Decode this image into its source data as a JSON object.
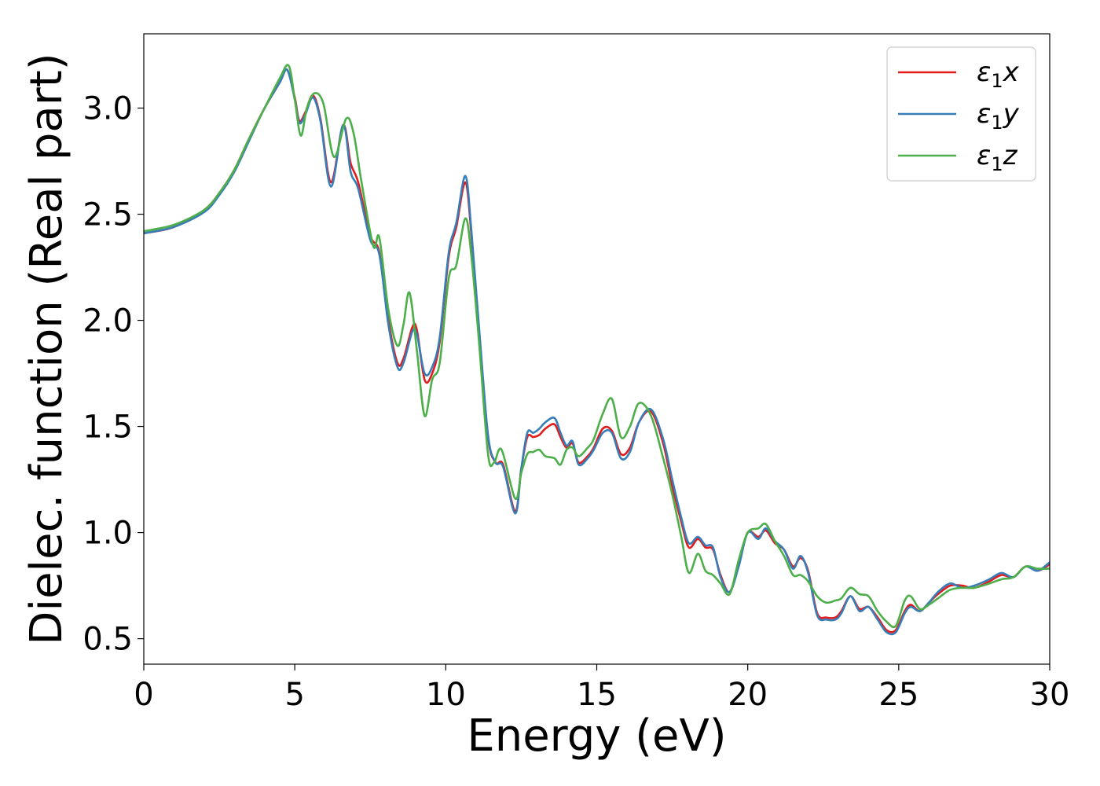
{
  "chart_data": {
    "type": "line",
    "title": "",
    "xlabel": "Energy (eV)",
    "ylabel": "Dielec. function (Real part)",
    "xlim": [
      0,
      30
    ],
    "ylim": [
      0.38,
      3.35
    ],
    "xticks": [
      0,
      5,
      10,
      15,
      20,
      25,
      30
    ],
    "yticks": [
      0.5,
      1.0,
      1.5,
      2.0,
      2.5,
      3.0
    ],
    "xtick_labels": [
      "0",
      "5",
      "10",
      "15",
      "20",
      "25",
      "30"
    ],
    "ytick_labels": [
      "0.5",
      "1.0",
      "1.5",
      "2.0",
      "2.5",
      "3.0"
    ],
    "grid": false,
    "legend_position": "top-right",
    "series": [
      {
        "name": "ε₁x",
        "legend_base": "ε",
        "legend_sub": "1",
        "legend_suffix": "x",
        "color": "#e41a1c",
        "x": [
          0,
          1,
          2,
          2.5,
          3,
          3.5,
          4,
          4.5,
          4.75,
          5.0,
          5.15,
          5.35,
          5.6,
          5.85,
          6.2,
          6.6,
          6.85,
          7.1,
          7.5,
          7.8,
          8.1,
          8.4,
          8.6,
          8.9,
          9.05,
          9.3,
          9.55,
          9.8,
          10.1,
          10.35,
          10.65,
          10.85,
          11.1,
          11.4,
          11.65,
          11.9,
          12.3,
          12.5,
          12.7,
          12.9,
          13.1,
          13.3,
          13.6,
          13.8,
          14.0,
          14.2,
          14.4,
          14.7,
          14.9,
          15.2,
          15.5,
          15.8,
          16.1,
          16.4,
          16.8,
          17.2,
          17.5,
          17.8,
          18.05,
          18.35,
          18.6,
          18.85,
          19.1,
          19.4,
          19.7,
          20.0,
          20.35,
          20.6,
          20.9,
          21.2,
          21.5,
          21.75,
          22.0,
          22.3,
          22.6,
          22.9,
          23.1,
          23.4,
          23.7,
          24.0,
          24.3,
          24.6,
          24.9,
          25.2,
          25.4,
          25.7,
          26.0,
          26.3,
          26.7,
          27.1,
          27.5,
          28.0,
          28.4,
          28.8,
          29.2,
          29.6,
          30
        ],
        "y": [
          2.41,
          2.44,
          2.52,
          2.6,
          2.71,
          2.86,
          3.0,
          3.12,
          3.18,
          3.05,
          2.94,
          2.98,
          3.06,
          2.95,
          2.65,
          2.92,
          2.74,
          2.65,
          2.4,
          2.32,
          2.0,
          1.8,
          1.82,
          1.97,
          1.95,
          1.72,
          1.75,
          1.9,
          2.3,
          2.44,
          2.65,
          2.4,
          1.95,
          1.45,
          1.33,
          1.32,
          1.1,
          1.3,
          1.45,
          1.45,
          1.46,
          1.49,
          1.51,
          1.45,
          1.4,
          1.42,
          1.33,
          1.36,
          1.4,
          1.49,
          1.48,
          1.37,
          1.4,
          1.52,
          1.57,
          1.42,
          1.22,
          1.05,
          0.93,
          0.97,
          0.93,
          0.92,
          0.8,
          0.72,
          0.85,
          1.0,
          0.98,
          1.01,
          0.95,
          0.92,
          0.84,
          0.88,
          0.82,
          0.62,
          0.6,
          0.6,
          0.63,
          0.7,
          0.64,
          0.65,
          0.6,
          0.54,
          0.54,
          0.63,
          0.66,
          0.63,
          0.67,
          0.71,
          0.75,
          0.75,
          0.74,
          0.77,
          0.8,
          0.79,
          0.84,
          0.82,
          0.85
        ]
      },
      {
        "name": "ε₁y",
        "legend_base": "ε",
        "legend_sub": "1",
        "legend_suffix": "y",
        "color": "#377eb8",
        "x": [
          0,
          1,
          2,
          2.5,
          3,
          3.5,
          4,
          4.5,
          4.75,
          5.0,
          5.15,
          5.35,
          5.6,
          5.85,
          6.2,
          6.6,
          6.85,
          7.1,
          7.5,
          7.8,
          8.1,
          8.4,
          8.6,
          8.9,
          9.05,
          9.3,
          9.55,
          9.8,
          10.1,
          10.35,
          10.65,
          10.85,
          11.1,
          11.4,
          11.65,
          11.9,
          12.3,
          12.5,
          12.7,
          12.9,
          13.1,
          13.3,
          13.6,
          13.8,
          14.0,
          14.2,
          14.4,
          14.7,
          14.9,
          15.2,
          15.5,
          15.8,
          16.1,
          16.4,
          16.8,
          17.2,
          17.5,
          17.8,
          18.05,
          18.35,
          18.6,
          18.85,
          19.1,
          19.4,
          19.7,
          20.0,
          20.35,
          20.6,
          20.9,
          21.2,
          21.5,
          21.75,
          22.0,
          22.3,
          22.6,
          22.9,
          23.1,
          23.4,
          23.7,
          24.0,
          24.3,
          24.6,
          24.9,
          25.2,
          25.4,
          25.7,
          26.0,
          26.3,
          26.7,
          27.1,
          27.5,
          28.0,
          28.4,
          28.8,
          29.2,
          29.6,
          30
        ],
        "y": [
          2.41,
          2.44,
          2.51,
          2.59,
          2.7,
          2.85,
          3.0,
          3.12,
          3.18,
          3.04,
          2.93,
          2.97,
          3.05,
          2.94,
          2.63,
          2.92,
          2.7,
          2.62,
          2.38,
          2.31,
          1.98,
          1.78,
          1.8,
          1.95,
          1.93,
          1.75,
          1.78,
          1.92,
          2.32,
          2.46,
          2.68,
          2.42,
          1.97,
          1.46,
          1.33,
          1.31,
          1.09,
          1.3,
          1.47,
          1.47,
          1.49,
          1.52,
          1.54,
          1.47,
          1.41,
          1.43,
          1.32,
          1.35,
          1.39,
          1.47,
          1.47,
          1.35,
          1.38,
          1.52,
          1.58,
          1.44,
          1.25,
          1.07,
          0.95,
          0.98,
          0.94,
          0.93,
          0.79,
          0.72,
          0.84,
          1.0,
          0.97,
          1.02,
          0.96,
          0.92,
          0.83,
          0.89,
          0.81,
          0.61,
          0.59,
          0.59,
          0.62,
          0.7,
          0.63,
          0.65,
          0.59,
          0.53,
          0.53,
          0.62,
          0.65,
          0.63,
          0.67,
          0.72,
          0.76,
          0.74,
          0.75,
          0.78,
          0.81,
          0.79,
          0.84,
          0.82,
          0.86
        ]
      },
      {
        "name": "ε₁z",
        "legend_base": "ε",
        "legend_sub": "1",
        "legend_suffix": "z",
        "color": "#4daf4a",
        "x": [
          0,
          1,
          2,
          2.5,
          3,
          3.5,
          4,
          4.5,
          4.8,
          5.0,
          5.2,
          5.4,
          5.65,
          5.95,
          6.3,
          6.7,
          6.95,
          7.2,
          7.6,
          7.8,
          8.1,
          8.4,
          8.6,
          8.8,
          9.05,
          9.3,
          9.55,
          9.8,
          10.1,
          10.35,
          10.65,
          10.85,
          11.1,
          11.4,
          11.6,
          11.85,
          12.3,
          12.5,
          12.7,
          12.9,
          13.1,
          13.3,
          13.6,
          13.8,
          14.0,
          14.2,
          14.4,
          14.7,
          14.9,
          15.2,
          15.5,
          15.8,
          16.1,
          16.4,
          16.8,
          17.2,
          17.5,
          17.8,
          18.05,
          18.35,
          18.6,
          18.85,
          19.1,
          19.4,
          19.7,
          20.0,
          20.35,
          20.6,
          20.9,
          21.2,
          21.5,
          21.75,
          22.0,
          22.3,
          22.6,
          22.9,
          23.1,
          23.4,
          23.7,
          24.0,
          24.3,
          24.6,
          24.9,
          25.2,
          25.4,
          25.7,
          26.0,
          26.3,
          26.7,
          27.1,
          27.5,
          28.0,
          28.4,
          28.8,
          29.2,
          29.6,
          30
        ],
        "y": [
          2.42,
          2.45,
          2.52,
          2.6,
          2.71,
          2.86,
          3.0,
          3.14,
          3.2,
          3.04,
          2.87,
          3.0,
          3.07,
          3.02,
          2.77,
          2.95,
          2.88,
          2.66,
          2.35,
          2.39,
          2.05,
          1.88,
          1.98,
          2.13,
          1.85,
          1.55,
          1.72,
          1.8,
          2.2,
          2.26,
          2.48,
          2.3,
          1.9,
          1.37,
          1.33,
          1.39,
          1.16,
          1.28,
          1.37,
          1.38,
          1.39,
          1.36,
          1.35,
          1.32,
          1.39,
          1.4,
          1.36,
          1.4,
          1.44,
          1.56,
          1.63,
          1.45,
          1.5,
          1.61,
          1.55,
          1.35,
          1.18,
          0.98,
          0.81,
          0.9,
          0.82,
          0.8,
          0.76,
          0.71,
          0.87,
          1.0,
          1.02,
          1.04,
          0.96,
          0.89,
          0.8,
          0.8,
          0.77,
          0.7,
          0.67,
          0.68,
          0.69,
          0.74,
          0.71,
          0.7,
          0.63,
          0.58,
          0.56,
          0.68,
          0.7,
          0.64,
          0.66,
          0.69,
          0.73,
          0.74,
          0.74,
          0.76,
          0.78,
          0.79,
          0.84,
          0.83,
          0.83
        ]
      }
    ]
  }
}
